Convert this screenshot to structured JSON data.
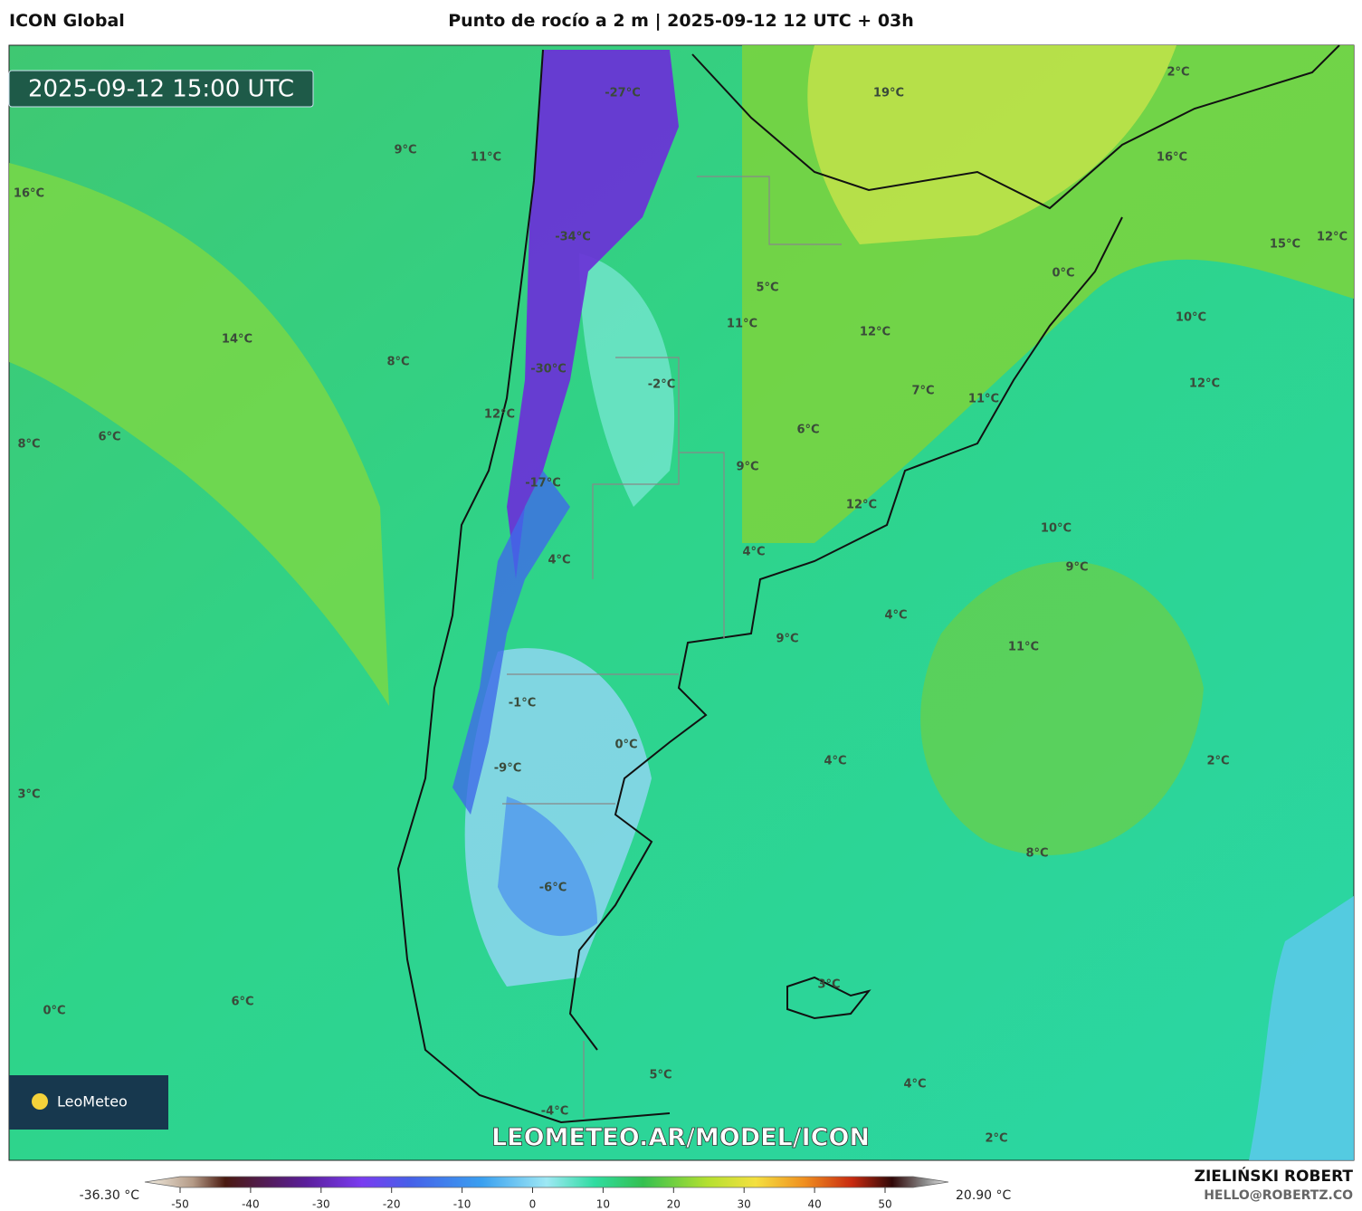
{
  "header": {
    "model": "ICON Global",
    "title": "Punto de rocío a 2 m | 2025-09-12 12 UTC + 03h"
  },
  "map": {
    "valid_time": "2025-09-12 15:00 UTC",
    "labels": [
      "-27°C",
      "-34°C",
      "-30°C",
      "-17°C",
      "12°C",
      "11°C",
      "9°C",
      "16°C",
      "14°C",
      "8°C",
      "6°C",
      "8°C",
      "19°C",
      "2°C",
      "16°C",
      "15°C",
      "12°C",
      "0°C",
      "5°C",
      "11°C",
      "12°C",
      "10°C",
      "-2°C",
      "7°C",
      "11°C",
      "12°C",
      "6°C",
      "9°C",
      "12°C",
      "10°C",
      "4°C",
      "4°C",
      "9°C",
      "4°C",
      "9°C",
      "11°C",
      "-1°C",
      "0°C",
      "-9°C",
      "4°C",
      "2°C",
      "3°C",
      "8°C",
      "-6°C",
      "3°C",
      "0°C",
      "6°C",
      "5°C",
      "4°C",
      "-4°C",
      "2°C"
    ],
    "logo": "LeoMeteo",
    "watermark": "LEOMETEO.AR/MODEL/ICON"
  },
  "legend": {
    "min_label": "-36.30 °C",
    "max_label": "20.90 °C",
    "ticks": [
      -50,
      -40,
      -30,
      -20,
      -10,
      0,
      10,
      20,
      30,
      40,
      50
    ]
  },
  "footer": {
    "author": "ZIELIŃSKI ROBERT",
    "contact": "HELLO@ROBERTZ.CO"
  }
}
